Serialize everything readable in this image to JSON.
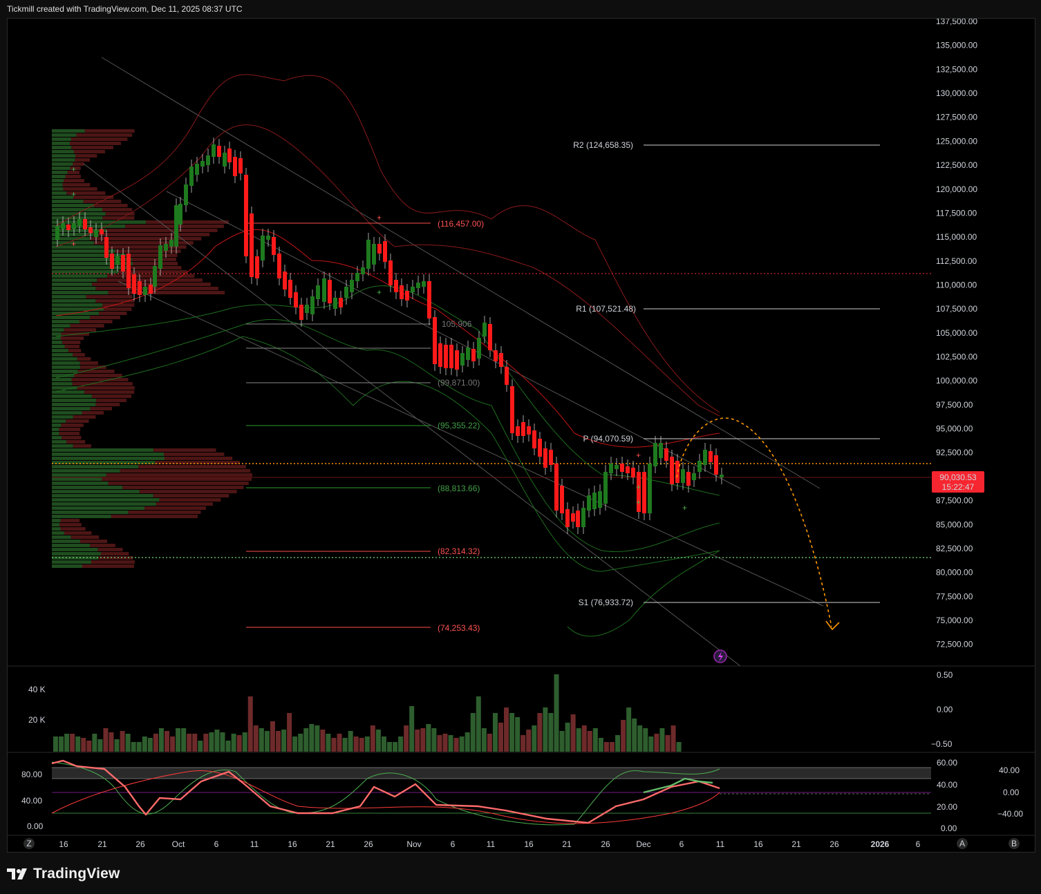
{
  "header": {
    "text": "Tickmill created with TradingView.com, Dec 11, 2025 08:37 UTC"
  },
  "footer": {
    "brand": "TradingView"
  },
  "price_axis": {
    "ticks": [
      "137,500.00",
      "135,000.00",
      "132,500.00",
      "130,000.00",
      "127,500.00",
      "125,000.00",
      "122,500.00",
      "120,000.00",
      "117,500.00",
      "115,000.00",
      "112,500.00",
      "110,000.00",
      "107,500.00",
      "105,000.00",
      "102,500.00",
      "100,000.00",
      "97,500.00",
      "95,000.00",
      "92,500.00",
      "90,000.00",
      "87,500.00",
      "85,000.00",
      "82,500.00",
      "80,000.00",
      "77,500.00",
      "75,000.00",
      "72,500.00"
    ],
    "last_price": "90,030.53",
    "countdown": "15:22:47",
    "last_price_color": "#f7252f"
  },
  "levels": {
    "r2": "R2 (124,658.35)",
    "r1": "R1 (107,521.48)",
    "p": "P (94,070.59)",
    "s1": "S1 (76,933.72)",
    "red_116": "(116,457.00)",
    "gray_105": "105,906",
    "gray_99": "(99,871.00)",
    "green_95": "(95,355.22)",
    "green_88": "(88,813.66)",
    "red_82": "(82,314.32)",
    "red_74": "(74,253.43)"
  },
  "volume_axis": {
    "left": [
      "40 K",
      "20 K"
    ],
    "right": [
      "0.50",
      "0.00",
      "−0.50"
    ]
  },
  "osc_axis": {
    "left": [
      "80.00",
      "40.00",
      "0.00"
    ],
    "mid": [
      "60.00",
      "40.00",
      "20.00",
      "0.00"
    ],
    "right": [
      "40.00",
      "0.00",
      "−40.00"
    ]
  },
  "time_axis": {
    "labels": [
      "16",
      "21",
      "26",
      "Oct",
      "6",
      "11",
      "16",
      "21",
      "26",
      "Nov",
      "6",
      "11",
      "16",
      "21",
      "26",
      "Dec",
      "6",
      "11",
      "16",
      "21",
      "26",
      "2026",
      "6"
    ]
  },
  "corner_buttons": {
    "left": "Z",
    "right_a": "A",
    "right_b": "B"
  },
  "colors": {
    "up": "#089981",
    "down": "#f23645",
    "up_candle": "#1e7a1e",
    "down_candle": "#ff1a1a",
    "forecast": "#ff9800"
  }
}
